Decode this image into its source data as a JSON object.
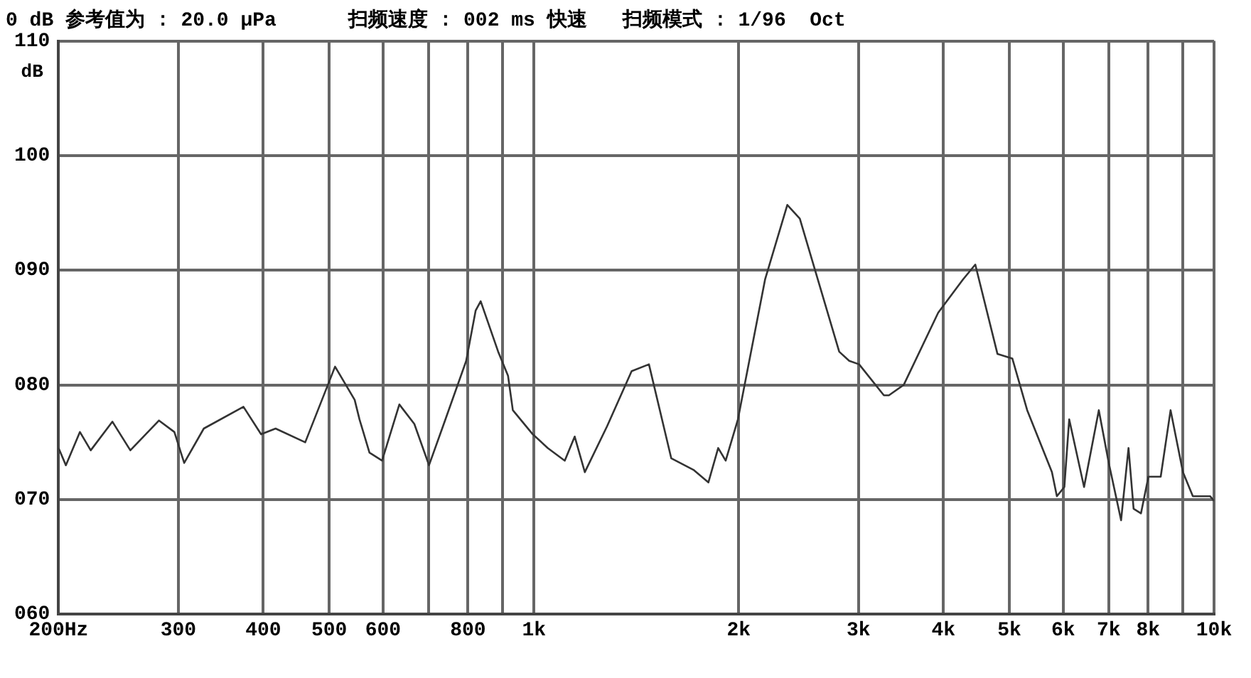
{
  "chart_data": {
    "type": "line",
    "title": "0 dB 参考值为 : 20.0 μPa      扫频速度 : 002 ms 快速   扫频模式 : 1/96  Oct",
    "ylabel": "dB",
    "log": "x",
    "grid": true,
    "marker": "none",
    "line_style": "solid",
    "xlim": [
      200,
      10000
    ],
    "ylim": [
      60,
      110
    ],
    "xticks": [
      {
        "value": 200,
        "label": "200Hz"
      },
      300,
      400,
      500,
      600,
      {
        "value": 700,
        "label": null
      },
      800,
      {
        "value": 900,
        "label": null
      },
      {
        "value": 1000,
        "label": "1k"
      },
      {
        "value": 2000,
        "label": "2k"
      },
      {
        "value": 3000,
        "label": "3k"
      },
      {
        "value": 4000,
        "label": "4k"
      },
      {
        "value": 5000,
        "label": "5k"
      },
      {
        "value": 6000,
        "label": "6k"
      },
      {
        "value": 7000,
        "label": "7k"
      },
      {
        "value": 8000,
        "label": "8k"
      },
      {
        "value": 9000,
        "label": null
      },
      {
        "value": 10000,
        "label": "10k"
      }
    ],
    "yticks": [
      {
        "value": 60,
        "label": "060"
      },
      {
        "value": 70,
        "label": "070"
      },
      {
        "value": 80,
        "label": "080"
      },
      {
        "value": 90,
        "label": "090"
      },
      100,
      110
    ],
    "x": [
      200,
      205,
      215,
      223,
      240,
      255,
      281,
      296,
      306,
      327,
      374,
      397,
      417,
      461,
      510,
      545,
      554,
      573,
      598,
      634,
      667,
      701,
      737,
      795,
      821,
      835,
      886,
      916,
      931,
      996,
      1048,
      1110,
      1148,
      1188,
      1281,
      1392,
      1476,
      1592,
      1716,
      1805,
      1866,
      1914,
      1995,
      2187,
      2358,
      2460,
      2811,
      2908,
      3007,
      3270,
      3326,
      3497,
      3930,
      4274,
      4456,
      4804,
      5052,
      5312,
      5776,
      5874,
      6024,
      6124,
      6440,
      6770,
      7002,
      7300,
      7486,
      7616,
      7808,
      8008,
      8348,
      8632,
      9000,
      9308,
      9866,
      10000
    ],
    "series": [
      {
        "color": "#333333",
        "values": [
          74.5,
          73.0,
          75.9,
          74.3,
          76.8,
          74.3,
          76.9,
          75.9,
          73.2,
          76.2,
          78.1,
          75.7,
          76.2,
          75.0,
          81.6,
          78.7,
          77.0,
          74.1,
          73.4,
          78.3,
          76.6,
          73.0,
          76.6,
          82.1,
          86.5,
          87.3,
          82.9,
          80.8,
          77.8,
          75.7,
          74.5,
          73.4,
          75.5,
          72.4,
          76.4,
          81.2,
          81.8,
          73.6,
          72.6,
          71.5,
          74.5,
          73.4,
          77.0,
          89.2,
          95.7,
          94.5,
          82.9,
          82.1,
          81.8,
          79.1,
          79.1,
          80.0,
          86.3,
          89.2,
          90.5,
          82.7,
          82.3,
          77.8,
          72.4,
          70.3,
          71.1,
          77.0,
          71.1,
          77.8,
          73.2,
          68.2,
          74.5,
          69.2,
          68.8,
          72.0,
          72.0,
          77.8,
          72.4,
          70.3,
          70.3,
          69.9
        ]
      }
    ]
  }
}
